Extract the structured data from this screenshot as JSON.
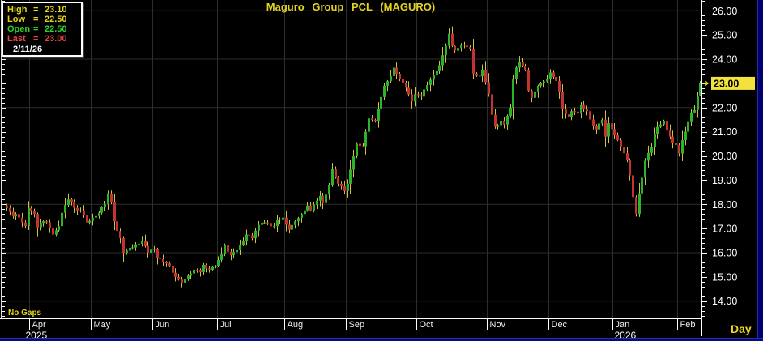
{
  "title": "Maguro Group PCL (MAGURO)",
  "legend": {
    "rows": [
      {
        "label": "High",
        "value": "23.10",
        "color": "yellow"
      },
      {
        "label": "Low",
        "value": "22.50",
        "color": "yellow"
      },
      {
        "label": "Open",
        "value": "22.50",
        "color": "green"
      },
      {
        "label": "Last",
        "value": "23.00",
        "color": "red"
      }
    ],
    "date": "2/11/26"
  },
  "y_axis": {
    "labels": [
      "26.00",
      "25.00",
      "24.00",
      "23.00",
      "22.00",
      "21.00",
      "20.00",
      "19.00",
      "18.00",
      "17.00",
      "16.00",
      "15.00",
      "14.00"
    ],
    "last_price_label": "23.00"
  },
  "footer": {
    "no_gaps": "No Gaps",
    "interval": "Day"
  },
  "colors": {
    "background": "#000000",
    "grid": "#2d2d2d",
    "up": "#2bb42b",
    "down": "#c43232",
    "wick": "#cfc23e",
    "axis_text": "#f0f0f0",
    "accent_yellow": "#e3d321",
    "highlight_bg": "#f2e33c",
    "frame": "#ffffff"
  },
  "chart_data": {
    "type": "candlestick",
    "title": "Maguro Group PCL (MAGURO)",
    "symbol": "MAGURO",
    "interval": "Day",
    "session_date": "2/11/26",
    "ohlc_today": {
      "open": 22.5,
      "high": 23.1,
      "low": 22.5,
      "last": 23.0
    },
    "ylim": [
      13.3,
      26.45
    ],
    "y_tick_step": 1.0,
    "grid_prices": [
      14,
      16,
      18,
      20,
      22,
      24,
      26
    ],
    "days_total": 227,
    "months": [
      {
        "label": "Apr",
        "start_day": 8
      },
      {
        "label": "May",
        "start_day": 28
      },
      {
        "label": "Jun",
        "start_day": 48
      },
      {
        "label": "Jul",
        "start_day": 69
      },
      {
        "label": "Aug",
        "start_day": 91
      },
      {
        "label": "Sep",
        "start_day": 111
      },
      {
        "label": "Oct",
        "start_day": 134
      },
      {
        "label": "Nov",
        "start_day": 157
      },
      {
        "label": "Dec",
        "start_day": 177
      },
      {
        "label": "Jan",
        "start_day": 198
      },
      {
        "label": "Feb",
        "start_day": 219
      }
    ],
    "years": [
      {
        "label": "2025",
        "at_month": "Apr"
      },
      {
        "label": "2026",
        "at_month": "Jan"
      }
    ],
    "price_path_anchors": [
      [
        0,
        17.85
      ],
      [
        2,
        17.5
      ],
      [
        3,
        17.6
      ],
      [
        4,
        17.45
      ],
      [
        6,
        17.1
      ],
      [
        7,
        17.85
      ],
      [
        9,
        17.6
      ],
      [
        10,
        17.05
      ],
      [
        12,
        17.3
      ],
      [
        13,
        17.25
      ],
      [
        15,
        16.75
      ],
      [
        17,
        17.1
      ],
      [
        18,
        17.65
      ],
      [
        20,
        18.2
      ],
      [
        22,
        17.85
      ],
      [
        24,
        17.75
      ],
      [
        26,
        17.25
      ],
      [
        28,
        17.45
      ],
      [
        30,
        17.65
      ],
      [
        32,
        18.0
      ],
      [
        33,
        18.45
      ],
      [
        34,
        18.1
      ],
      [
        35,
        17.3
      ],
      [
        37,
        16.6
      ],
      [
        38,
        16.0
      ],
      [
        40,
        16.2
      ],
      [
        42,
        16.35
      ],
      [
        44,
        16.5
      ],
      [
        46,
        16.0
      ],
      [
        48,
        16.15
      ],
      [
        49,
        15.8
      ],
      [
        51,
        15.6
      ],
      [
        53,
        15.45
      ],
      [
        55,
        15.0
      ],
      [
        57,
        14.75
      ],
      [
        59,
        15.05
      ],
      [
        61,
        15.3
      ],
      [
        63,
        15.2
      ],
      [
        64,
        15.5
      ],
      [
        66,
        15.3
      ],
      [
        68,
        15.45
      ],
      [
        69,
        15.7
      ],
      [
        71,
        16.3
      ],
      [
        73,
        15.9
      ],
      [
        75,
        16.1
      ],
      [
        77,
        16.5
      ],
      [
        78,
        16.75
      ],
      [
        80,
        16.6
      ],
      [
        82,
        17.15
      ],
      [
        84,
        17.25
      ],
      [
        87,
        17.1
      ],
      [
        88,
        17.35
      ],
      [
        90,
        17.45
      ],
      [
        92,
        16.95
      ],
      [
        94,
        17.3
      ],
      [
        96,
        17.6
      ],
      [
        98,
        17.95
      ],
      [
        99,
        17.75
      ],
      [
        101,
        18.15
      ],
      [
        102,
        18.35
      ],
      [
        103,
        18.05
      ],
      [
        105,
        18.8
      ],
      [
        106,
        19.45
      ],
      [
        107,
        19.1
      ],
      [
        108,
        18.85
      ],
      [
        110,
        18.55
      ],
      [
        111,
        18.85
      ],
      [
        113,
        20.0
      ],
      [
        114,
        20.5
      ],
      [
        116,
        20.4
      ],
      [
        117,
        21.0
      ],
      [
        118,
        21.55
      ],
      [
        120,
        21.45
      ],
      [
        121,
        21.95
      ],
      [
        123,
        22.9
      ],
      [
        125,
        23.3
      ],
      [
        126,
        23.65
      ],
      [
        127,
        23.4
      ],
      [
        129,
        23.0
      ],
      [
        131,
        22.55
      ],
      [
        132,
        22.25
      ],
      [
        133,
        22.55
      ],
      [
        135,
        22.45
      ],
      [
        136,
        22.75
      ],
      [
        138,
        23.15
      ],
      [
        140,
        23.5
      ],
      [
        141,
        23.75
      ],
      [
        143,
        24.55
      ],
      [
        144,
        25.05
      ],
      [
        145,
        24.55
      ],
      [
        146,
        24.35
      ],
      [
        148,
        24.6
      ],
      [
        150,
        24.5
      ],
      [
        151,
        24.4
      ],
      [
        152,
        23.4
      ],
      [
        154,
        23.3
      ],
      [
        155,
        23.55
      ],
      [
        156,
        23.05
      ],
      [
        157,
        22.55
      ],
      [
        158,
        21.7
      ],
      [
        159,
        21.2
      ],
      [
        161,
        21.45
      ],
      [
        162,
        21.3
      ],
      [
        164,
        22.0
      ],
      [
        165,
        23.2
      ],
      [
        166,
        23.65
      ],
      [
        167,
        23.9
      ],
      [
        169,
        23.55
      ],
      [
        170,
        22.7
      ],
      [
        171,
        22.4
      ],
      [
        173,
        22.9
      ],
      [
        174,
        23.0
      ],
      [
        176,
        23.2
      ],
      [
        177,
        23.45
      ],
      [
        179,
        23.1
      ],
      [
        180,
        22.65
      ],
      [
        181,
        21.95
      ],
      [
        183,
        21.6
      ],
      [
        184,
        21.85
      ],
      [
        186,
        21.75
      ],
      [
        187,
        22.1
      ],
      [
        189,
        21.85
      ],
      [
        191,
        21.25
      ],
      [
        192,
        21.1
      ],
      [
        194,
        21.5
      ],
      [
        195,
        20.8
      ],
      [
        196,
        21.35
      ],
      [
        198,
        20.85
      ],
      [
        199,
        20.65
      ],
      [
        200,
        20.35
      ],
      [
        202,
        19.85
      ],
      [
        203,
        19.2
      ],
      [
        204,
        18.3
      ],
      [
        205,
        17.6
      ],
      [
        206,
        18.45
      ],
      [
        207,
        19.1
      ],
      [
        208,
        19.8
      ],
      [
        210,
        20.35
      ],
      [
        211,
        20.9
      ],
      [
        212,
        21.2
      ],
      [
        213,
        21.3
      ],
      [
        214,
        21.45
      ],
      [
        215,
        21.05
      ],
      [
        216,
        20.8
      ],
      [
        217,
        20.55
      ],
      [
        218,
        20.45
      ],
      [
        219,
        20.1
      ],
      [
        220,
        20.65
      ],
      [
        221,
        21.0
      ],
      [
        222,
        21.4
      ],
      [
        223,
        21.8
      ],
      [
        224,
        21.9
      ],
      [
        225,
        22.45
      ],
      [
        226,
        23.0
      ]
    ],
    "last_candle": {
      "open": 22.5,
      "high": 23.1,
      "low": 22.5,
      "close": 23.0
    },
    "noise_seed": 7
  }
}
